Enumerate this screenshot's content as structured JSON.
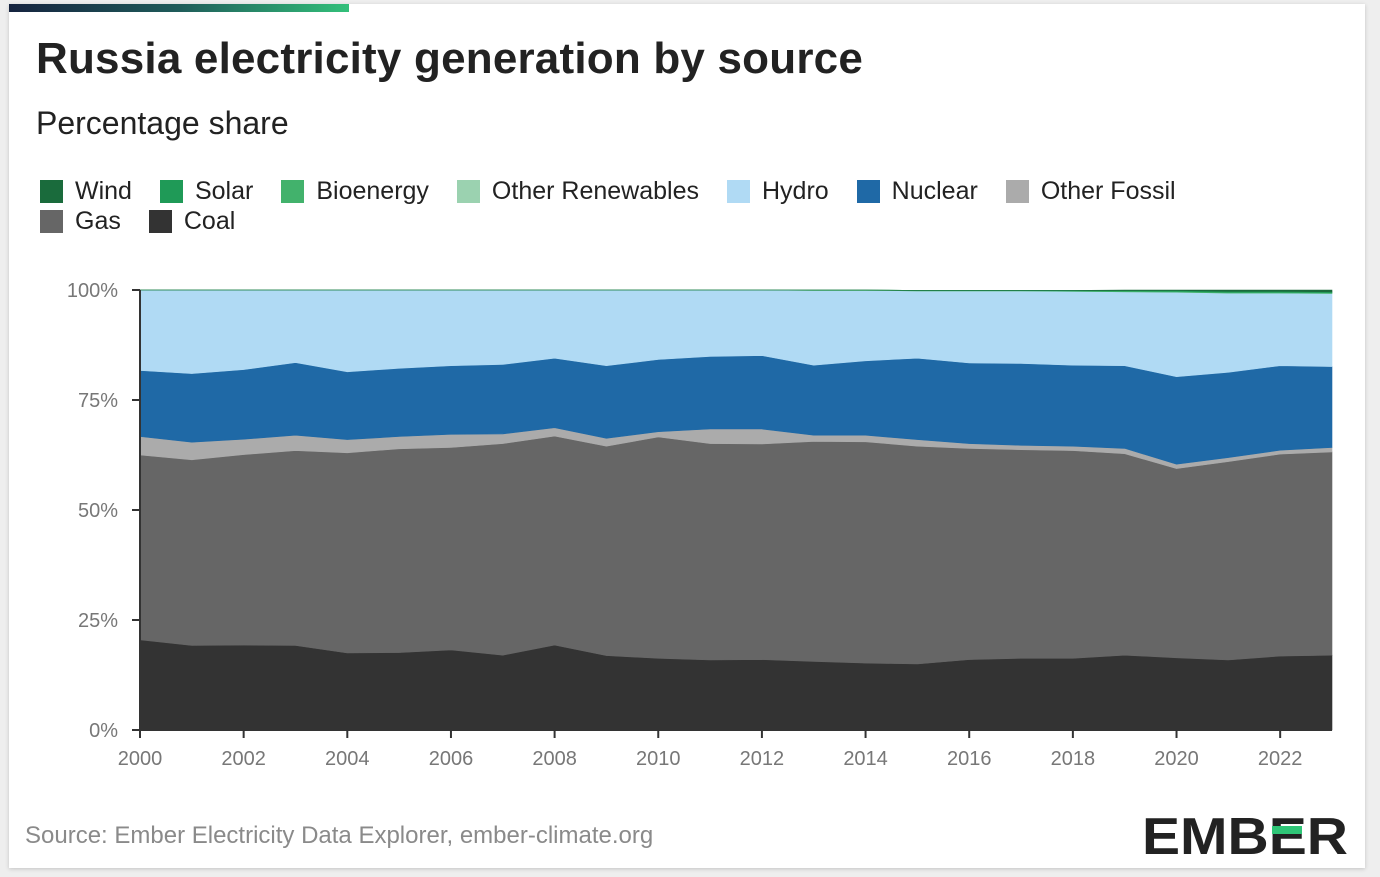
{
  "header": {
    "title": "Russia electricity generation by source",
    "subtitle": "Percentage share"
  },
  "legend": {
    "row1": [
      {
        "label": "Wind",
        "color": "#1a6b3c",
        "icon": "legend-swatch"
      },
      {
        "label": "Solar",
        "color": "#1f9a57",
        "icon": "legend-swatch"
      },
      {
        "label": "Bioenergy",
        "color": "#42b26c",
        "icon": "legend-swatch"
      },
      {
        "label": "Other Renewables",
        "color": "#9bd2b0",
        "icon": "legend-swatch"
      },
      {
        "label": "Hydro",
        "color": "#b0daf4",
        "icon": "legend-swatch"
      },
      {
        "label": "Nuclear",
        "color": "#1f69a6",
        "icon": "legend-swatch"
      },
      {
        "label": "Other Fossil",
        "color": "#ababab",
        "icon": "legend-swatch"
      }
    ],
    "row2": [
      {
        "label": "Gas",
        "color": "#666666",
        "icon": "legend-swatch"
      },
      {
        "label": "Coal",
        "color": "#333333",
        "icon": "legend-swatch"
      }
    ]
  },
  "footer": {
    "source": "Source: Ember Electricity Data Explorer, ember-climate.org",
    "logo_text": "EMBER",
    "logo_color": "#222222",
    "logo_accent": "#2fc677"
  },
  "chart_data": {
    "type": "area",
    "stacked": true,
    "x": [
      2000,
      2001,
      2002,
      2003,
      2004,
      2005,
      2006,
      2007,
      2008,
      2009,
      2010,
      2011,
      2012,
      2013,
      2014,
      2015,
      2016,
      2017,
      2018,
      2019,
      2020,
      2021,
      2022,
      2023
    ],
    "xticks": [
      2000,
      2002,
      2004,
      2006,
      2008,
      2010,
      2012,
      2014,
      2016,
      2018,
      2020,
      2022
    ],
    "yticks": [
      {
        "value": 0,
        "label": "0%"
      },
      {
        "value": 25,
        "label": "25%"
      },
      {
        "value": 50,
        "label": "50%"
      },
      {
        "value": 75,
        "label": "75%"
      },
      {
        "value": 100,
        "label": "100%"
      }
    ],
    "ylim": [
      0,
      100
    ],
    "grid": false,
    "legend_position": "top",
    "series": [
      {
        "name": "Coal",
        "color": "#333333",
        "values": [
          20.5,
          19.2,
          19.3,
          19.2,
          17.5,
          17.6,
          18.2,
          17.0,
          19.3,
          16.9,
          16.3,
          15.9,
          16.0,
          15.6,
          15.2,
          15.0,
          16.0,
          16.3,
          16.3,
          17.0,
          16.4,
          15.9,
          16.8,
          17.0
        ]
      },
      {
        "name": "Gas",
        "color": "#666666",
        "values": [
          42.0,
          42.2,
          43.3,
          44.3,
          45.5,
          46.3,
          46.0,
          48.1,
          47.5,
          47.6,
          50.3,
          49.2,
          49.0,
          50.0,
          50.3,
          49.5,
          48.0,
          47.4,
          47.2,
          45.8,
          43.0,
          45.1,
          45.9,
          46.2
        ]
      },
      {
        "name": "Other Fossil",
        "color": "#ababab",
        "values": [
          4.2,
          4.0,
          3.5,
          3.5,
          3.0,
          2.8,
          3.0,
          2.2,
          1.9,
          1.8,
          1.2,
          3.3,
          3.4,
          1.4,
          1.5,
          1.5,
          1.1,
          1.0,
          1.0,
          1.2,
          1.0,
          0.9,
          0.9,
          1.0
        ]
      },
      {
        "name": "Nuclear",
        "color": "#1f69a6",
        "values": [
          15.0,
          15.6,
          15.8,
          16.5,
          15.4,
          15.5,
          15.6,
          15.8,
          15.8,
          16.5,
          16.4,
          16.5,
          16.7,
          15.9,
          16.9,
          18.5,
          18.3,
          18.6,
          18.4,
          18.8,
          19.9,
          19.4,
          19.2,
          18.4
        ]
      },
      {
        "name": "Hydro",
        "color": "#b0daf4",
        "values": [
          18.3,
          19.0,
          18.1,
          16.5,
          18.6,
          17.8,
          17.2,
          16.9,
          15.5,
          17.2,
          15.8,
          15.1,
          14.9,
          17.0,
          16.0,
          15.3,
          16.4,
          16.5,
          16.8,
          16.8,
          19.2,
          18.0,
          16.5,
          16.6
        ]
      },
      {
        "name": "Other Renewables",
        "color": "#9bd2b0",
        "values": [
          0,
          0,
          0,
          0,
          0,
          0,
          0,
          0,
          0,
          0,
          0,
          0,
          0,
          0,
          0,
          0,
          0,
          0,
          0,
          0,
          0,
          0,
          0,
          0
        ]
      },
      {
        "name": "Bioenergy",
        "color": "#42b26c",
        "values": [
          0,
          0,
          0,
          0,
          0,
          0,
          0,
          0,
          0,
          0,
          0,
          0,
          0,
          0.1,
          0.1,
          0.1,
          0.1,
          0.1,
          0.1,
          0.2,
          0.2,
          0.2,
          0.2,
          0.2
        ]
      },
      {
        "name": "Solar",
        "color": "#1f9a57",
        "values": [
          0,
          0,
          0,
          0,
          0,
          0,
          0,
          0,
          0,
          0,
          0,
          0,
          0,
          0,
          0,
          0,
          0,
          0,
          0.1,
          0.1,
          0.2,
          0.2,
          0.2,
          0.2
        ]
      },
      {
        "name": "Wind",
        "color": "#1a6b3c",
        "values": [
          0,
          0,
          0,
          0,
          0,
          0,
          0,
          0,
          0,
          0,
          0,
          0,
          0,
          0,
          0,
          0,
          0,
          0,
          0,
          0.1,
          0.1,
          0.3,
          0.3,
          0.4
        ]
      }
    ]
  }
}
